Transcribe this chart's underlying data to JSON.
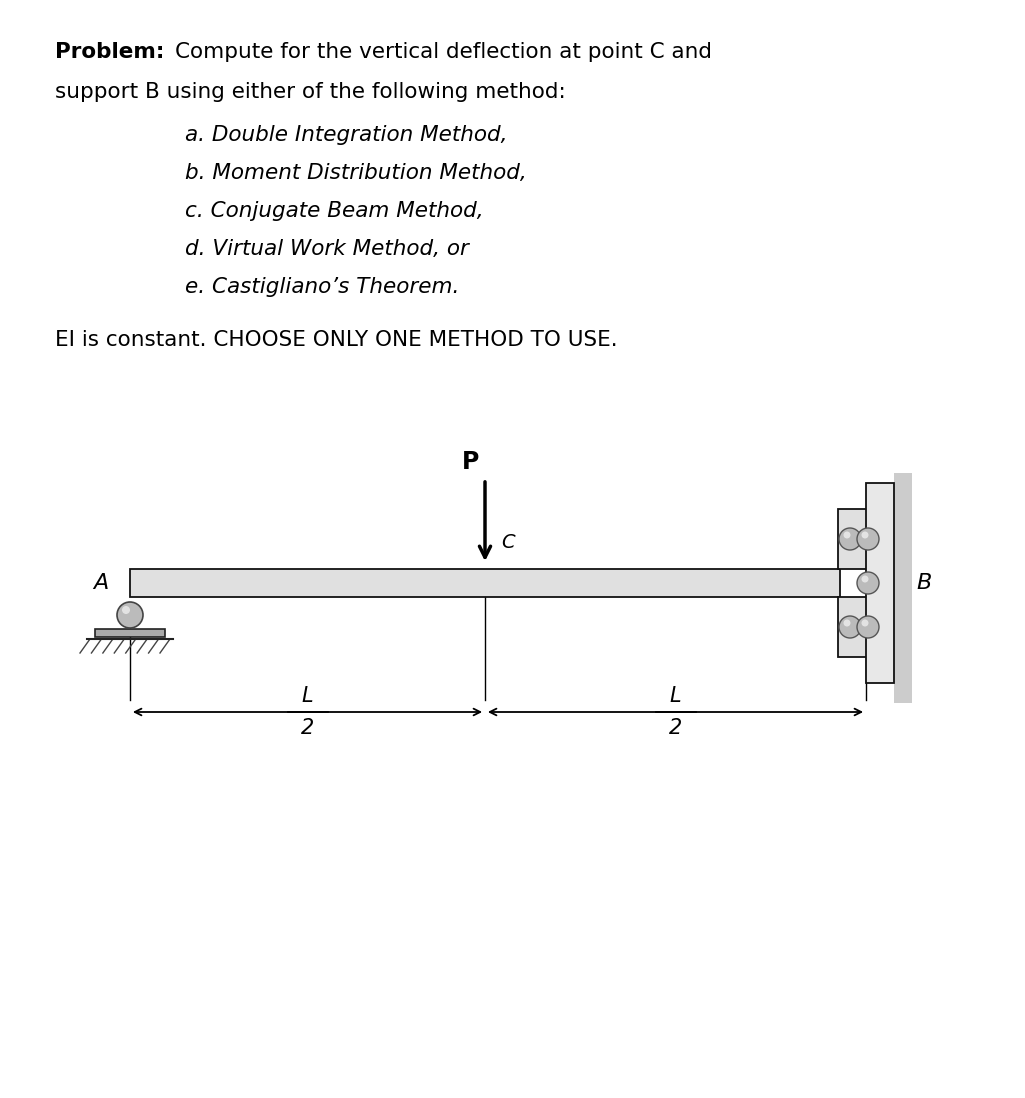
{
  "bg_color": "#ffffff",
  "text_color": "#000000",
  "beam_color": "#e0e0e0",
  "beam_outline": "#111111",
  "roller_color": "#bbbbbb",
  "roller_edge": "#555555",
  "wall_plate_color": "#e8e8e8",
  "wall_shadow_color": "#b8b8b8",
  "bracket_color": "#e0e0e0",
  "label_A": "A",
  "label_B": "B",
  "label_C": "C",
  "label_P": "P",
  "label_L": "L",
  "label_2": "2"
}
